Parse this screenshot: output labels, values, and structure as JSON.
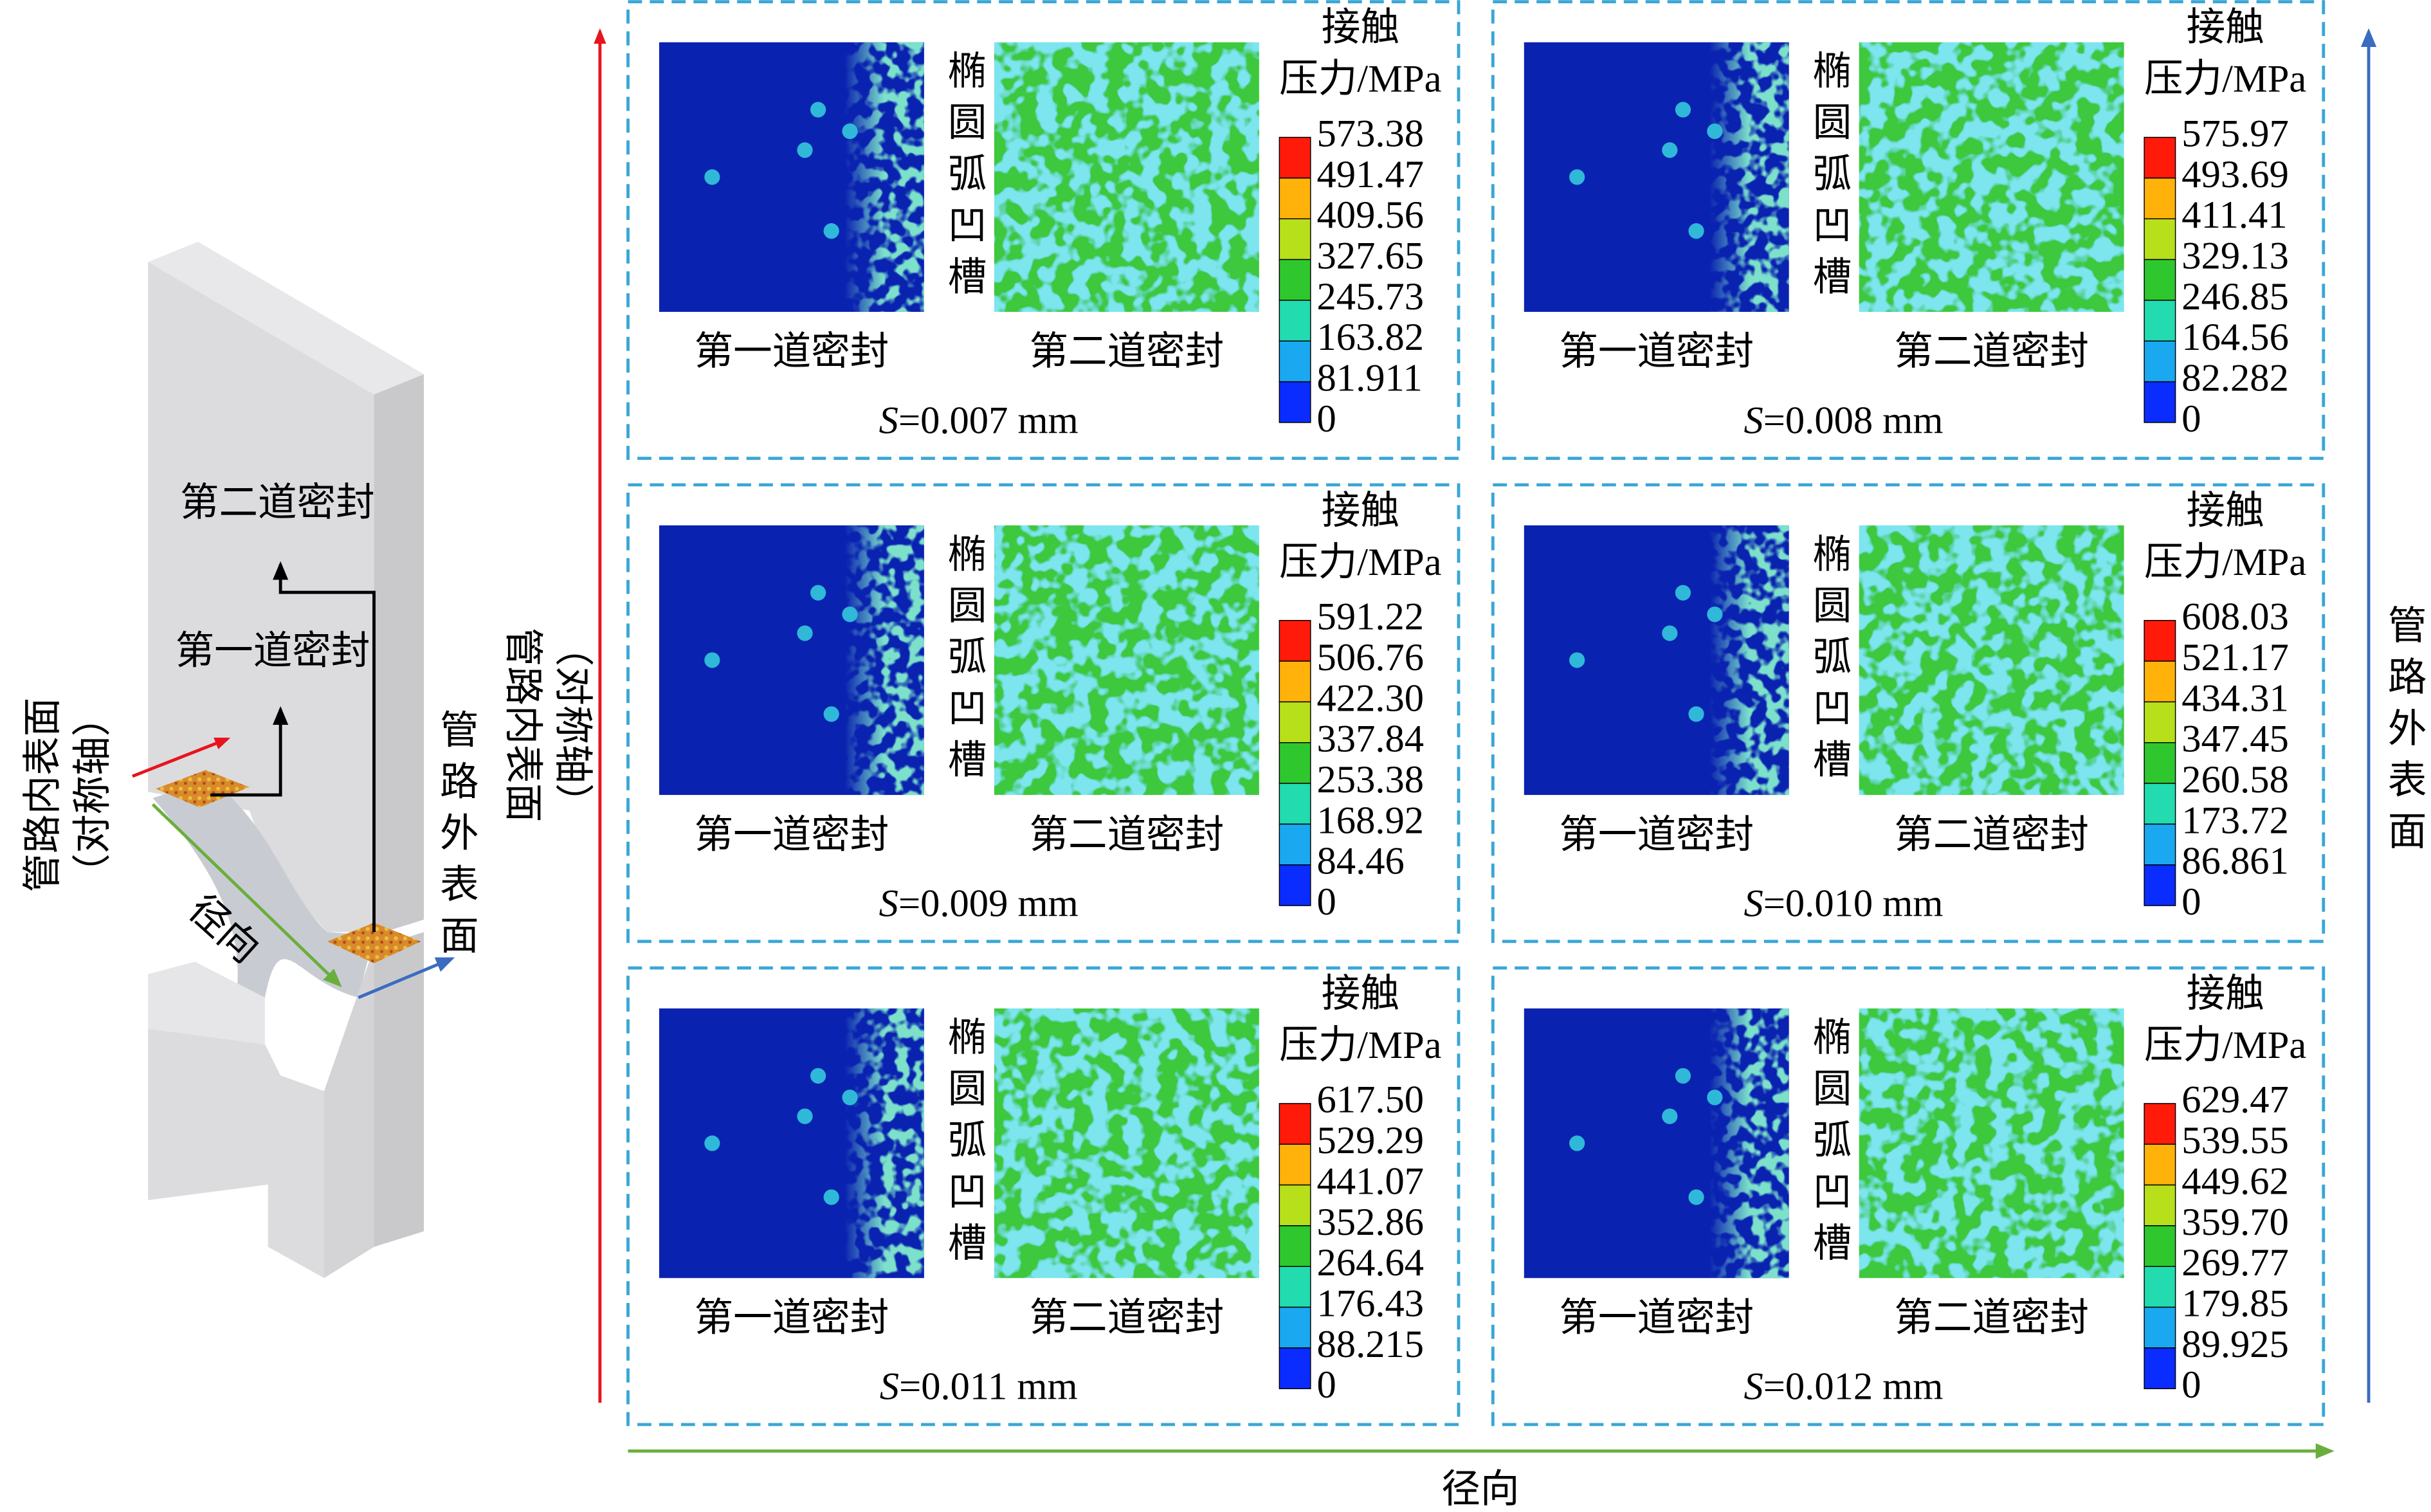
{
  "left": {
    "second_seal": "第二道密封",
    "first_seal": "第一道密封",
    "inner_surface": "管路内表面",
    "inner_surface_note": "（对称轴）",
    "outer_surface": "管路外表面",
    "radial": "径向",
    "inner_surface_mid": "管路内表面",
    "inner_surface_mid_note": "（对称轴）"
  },
  "axes": {
    "radial": "径向",
    "outer_surface": "管路外表面"
  },
  "panels": [
    {
      "groove": "椭圆弧凹槽",
      "first_seal": "第一道密封",
      "second_seal": "第二道密封",
      "legend_title_1": "接触",
      "legend_title_2": "压力/MPa",
      "ticks": [
        "573.38",
        "491.47",
        "409.56",
        "327.65",
        "245.73",
        "163.82",
        "81.911",
        "0"
      ],
      "s_symbol": "S",
      "s_value": "=0.007 mm"
    },
    {
      "groove": "椭圆弧凹槽",
      "first_seal": "第一道密封",
      "second_seal": "第二道密封",
      "legend_title_1": "接触",
      "legend_title_2": "压力/MPa",
      "ticks": [
        "575.97",
        "493.69",
        "411.41",
        "329.13",
        "246.85",
        "164.56",
        "82.282",
        "0"
      ],
      "s_symbol": "S",
      "s_value": "=0.008 mm"
    },
    {
      "groove": "椭圆弧凹槽",
      "first_seal": "第一道密封",
      "second_seal": "第二道密封",
      "legend_title_1": "接触",
      "legend_title_2": "压力/MPa",
      "ticks": [
        "591.22",
        "506.76",
        "422.30",
        "337.84",
        "253.38",
        "168.92",
        "84.46",
        "0"
      ],
      "s_symbol": "S",
      "s_value": "=0.009 mm"
    },
    {
      "groove": "椭圆弧凹槽",
      "first_seal": "第一道密封",
      "second_seal": "第二道密封",
      "legend_title_1": "接触",
      "legend_title_2": "压力/MPa",
      "ticks": [
        "608.03",
        "521.17",
        "434.31",
        "347.45",
        "260.58",
        "173.72",
        "86.861",
        "0"
      ],
      "s_symbol": "S",
      "s_value": "=0.010 mm"
    },
    {
      "groove": "椭圆弧凹槽",
      "first_seal": "第一道密封",
      "second_seal": "第二道密封",
      "legend_title_1": "接触",
      "legend_title_2": "压力/MPa",
      "ticks": [
        "617.50",
        "529.29",
        "441.07",
        "352.86",
        "264.64",
        "176.43",
        "88.215",
        "0"
      ],
      "s_symbol": "S",
      "s_value": "=0.011 mm"
    },
    {
      "groove": "椭圆弧凹槽",
      "first_seal": "第一道密封",
      "second_seal": "第二道密封",
      "legend_title_1": "接触",
      "legend_title_2": "压力/MPa",
      "ticks": [
        "629.47",
        "539.55",
        "449.62",
        "359.70",
        "269.77",
        "179.85",
        "89.925",
        "0"
      ],
      "s_symbol": "S",
      "s_value": "=0.012 mm"
    }
  ]
}
